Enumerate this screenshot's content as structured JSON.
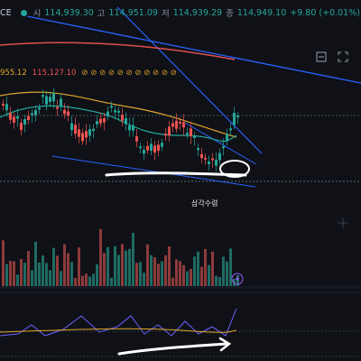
{
  "header": {
    "symbol": "CE",
    "open_label": "시",
    "open_value": "114,939.30",
    "high_label": "고",
    "high_value": "114,951.09",
    "low_label": "저",
    "low_value": "114,939.29",
    "close_label": "종",
    "close_value": "114,949.10",
    "change": "+9.80 (+0.01%)"
  },
  "indicators": {
    "ma_value_1": "955.12",
    "ma_value_2": "115,127.10"
  },
  "annotation": {
    "label": "삼각수렴"
  },
  "colors": {
    "background": "#0f1117",
    "up": "#26a69a",
    "down": "#ef5350",
    "ma_short": "#26a69a",
    "ma_long": "#e0a52b",
    "trendline": "#2962ff",
    "volume_up": "#1f6b62",
    "volume_down": "#8d3b3b",
    "rsi": "#6c63ff"
  },
  "icons": [
    "settings-icon",
    "expand-icon",
    "eye-icon",
    "lightning-icon",
    "gear-icon"
  ]
}
